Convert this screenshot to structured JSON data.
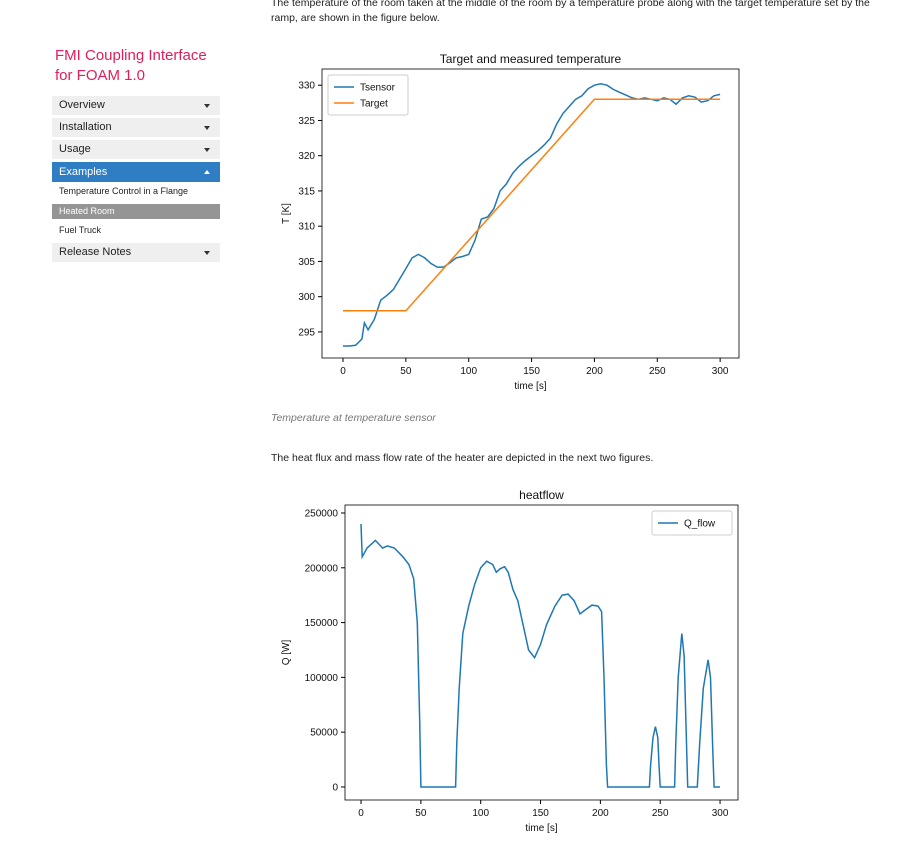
{
  "sidebar": {
    "title": "FMI Coupling Interface for FOAM 1.0",
    "items": [
      "Overview",
      "Installation",
      "Usage",
      "Examples",
      "Temperature Control in a Flange",
      "Heated Room",
      "Fuel Truck",
      "Release Notes"
    ]
  },
  "paragraphs": [
    "The temperature of the room taken at the middle of the room by a temperature probe along with the target temperature set by the ramp, are shown in the figure below.",
    "The heat flux and mass flow rate of the heater are depicted in the next two figures."
  ],
  "caption": "Temperature at temperature sensor",
  "chart_data": [
    {
      "type": "line",
      "title": "Target and measured temperature",
      "xlabel": "time [s]",
      "ylabel": "T [K]",
      "xlim": [
        -16.7,
        315
      ],
      "ylim": [
        291.3,
        332.3
      ],
      "xticks": [
        0,
        50,
        100,
        150,
        200,
        250,
        300
      ],
      "yticks": [
        295,
        300,
        305,
        310,
        315,
        320,
        325,
        330
      ],
      "grid": false,
      "legend": "upper left",
      "series": [
        {
          "name": "Tsensor",
          "color": "#1f77b4",
          "x": [
            0,
            5,
            10,
            15,
            17,
            20,
            25,
            30,
            35,
            40,
            45,
            50,
            55,
            60,
            65,
            70,
            75,
            80,
            85,
            90,
            95,
            100,
            105,
            110,
            115,
            120,
            125,
            130,
            135,
            140,
            145,
            150,
            155,
            160,
            165,
            170,
            175,
            180,
            185,
            190,
            195,
            200,
            205,
            210,
            215,
            220,
            225,
            230,
            235,
            240,
            245,
            250,
            255,
            260,
            265,
            270,
            275,
            280,
            285,
            290,
            295,
            300
          ],
          "values": [
            293,
            293,
            293.1,
            294,
            296.3,
            295.3,
            296.8,
            299.5,
            300.2,
            301,
            302.5,
            304,
            305.5,
            306,
            305.5,
            304.7,
            304.2,
            304.2,
            304.8,
            305.5,
            305.7,
            306,
            308,
            311,
            311.3,
            312.5,
            315,
            316,
            317.5,
            318.5,
            319.3,
            320,
            320.7,
            321.5,
            322.5,
            324.5,
            326,
            327,
            328,
            328.5,
            329.5,
            330,
            330.2,
            330,
            329.4,
            329,
            328.6,
            328.2,
            328,
            328.2,
            328,
            327.8,
            328.2,
            328,
            327.3,
            328.2,
            328.5,
            328.3,
            327.6,
            327.8,
            328.5,
            328.7
          ]
        },
        {
          "name": "Target",
          "color": "#ff7f0e",
          "x": [
            0,
            50,
            200,
            300
          ],
          "values": [
            298,
            298,
            328,
            328
          ]
        }
      ]
    },
    {
      "type": "line",
      "title": "heatflow",
      "xlabel": "time [s]",
      "ylabel": "Q [W]",
      "xlim": [
        -13.4,
        315
      ],
      "ylim": [
        -11900,
        257300
      ],
      "xticks": [
        0,
        50,
        100,
        150,
        200,
        250,
        300
      ],
      "yticks": [
        0,
        50000,
        100000,
        150000,
        200000,
        250000
      ],
      "grid": false,
      "legend": "upper right",
      "series": [
        {
          "name": "Q_flow",
          "color": "#1f77b4",
          "x": [
            0,
            1,
            5,
            12,
            18,
            22,
            28,
            35,
            40,
            44,
            47,
            49,
            50,
            79,
            80,
            82,
            85,
            90,
            95,
            100,
            105,
            110,
            113,
            116,
            120,
            123,
            127,
            131,
            135,
            140,
            145,
            150,
            155,
            162,
            168,
            173,
            178,
            183,
            188,
            193,
            198,
            201,
            203,
            205,
            206,
            241,
            242,
            244,
            246,
            248,
            249,
            250,
            262,
            263,
            265,
            268,
            270,
            272,
            273,
            281,
            283,
            286,
            290,
            292,
            294,
            295,
            300
          ],
          "values": [
            240000,
            210000,
            218000,
            225000,
            218000,
            220000,
            218000,
            210000,
            203000,
            190000,
            150000,
            60000,
            0,
            0,
            40000,
            90000,
            140000,
            165000,
            185000,
            200000,
            206000,
            203000,
            196000,
            199000,
            201000,
            196000,
            180000,
            170000,
            150000,
            125000,
            118000,
            130000,
            148000,
            165000,
            175000,
            176000,
            170000,
            158000,
            162000,
            166000,
            165000,
            160000,
            100000,
            20000,
            0,
            0,
            20000,
            45000,
            55000,
            45000,
            20000,
            0,
            0,
            40000,
            100000,
            140000,
            120000,
            40000,
            0,
            0,
            40000,
            90000,
            116000,
            100000,
            30000,
            0,
            0
          ]
        }
      ]
    }
  ]
}
